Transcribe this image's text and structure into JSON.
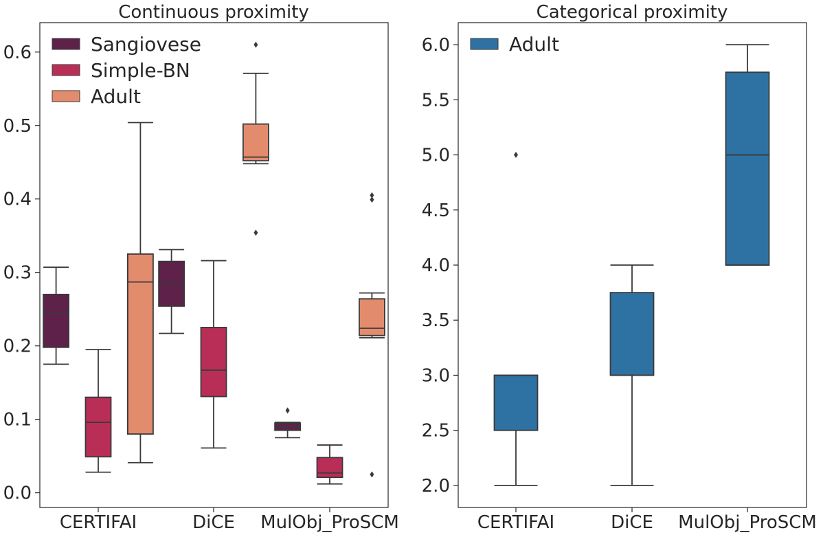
{
  "chart_data": [
    {
      "type": "box",
      "title": "Continuous proximity",
      "xlabel": "",
      "ylabel": "",
      "categories": [
        "CERTIFAI",
        "DiCE",
        "MulObj_ProSCM"
      ],
      "ylim": [
        -0.02,
        0.64
      ],
      "yticks": [
        "0.0",
        "0.1",
        "0.2",
        "0.3",
        "0.4",
        "0.5",
        "0.6"
      ],
      "legend": {
        "position": "top-left",
        "entries": [
          "Sangiovese",
          "Simple-BN",
          "Adult"
        ]
      },
      "series": [
        {
          "name": "Sangiovese",
          "color": "#5e2149",
          "boxes": [
            {
              "whisker_low": 0.175,
              "q1": 0.198,
              "median": 0.245,
              "q3": 0.27,
              "whisker_high": 0.307,
              "outliers": []
            },
            {
              "whisker_low": 0.217,
              "q1": 0.254,
              "median": 0.285,
              "q3": 0.315,
              "whisker_high": 0.331,
              "outliers": []
            },
            {
              "whisker_low": 0.075,
              "q1": 0.085,
              "median": 0.09,
              "q3": 0.095,
              "whisker_high": 0.096,
              "outliers": [
                0.112
              ]
            }
          ]
        },
        {
          "name": "Simple-BN",
          "color": "#b92e57",
          "boxes": [
            {
              "whisker_low": 0.028,
              "q1": 0.049,
              "median": 0.096,
              "q3": 0.13,
              "whisker_high": 0.195,
              "outliers": []
            },
            {
              "whisker_low": 0.061,
              "q1": 0.131,
              "median": 0.167,
              "q3": 0.225,
              "whisker_high": 0.316,
              "outliers": []
            },
            {
              "whisker_low": 0.012,
              "q1": 0.021,
              "median": 0.027,
              "q3": 0.048,
              "whisker_high": 0.065,
              "outliers": []
            }
          ]
        },
        {
          "name": "Adult",
          "color": "#e38c6d",
          "boxes": [
            {
              "whisker_low": 0.041,
              "q1": 0.08,
              "median": 0.287,
              "q3": 0.325,
              "whisker_high": 0.504,
              "outliers": []
            },
            {
              "whisker_low": 0.448,
              "q1": 0.452,
              "median": 0.457,
              "q3": 0.502,
              "whisker_high": 0.571,
              "outliers": [
                0.354,
                0.61
              ]
            },
            {
              "whisker_low": 0.211,
              "q1": 0.214,
              "median": 0.224,
              "q3": 0.264,
              "whisker_high": 0.272,
              "outliers": [
                0.025,
                0.399,
                0.405
              ]
            }
          ]
        }
      ]
    },
    {
      "type": "box",
      "title": "Categorical proximity",
      "xlabel": "",
      "ylabel": "",
      "categories": [
        "CERTIFAI",
        "DiCE",
        "MulObj_ProSCM"
      ],
      "ylim": [
        1.8,
        6.2
      ],
      "yticks": [
        "2.0",
        "2.5",
        "3.0",
        "3.5",
        "4.0",
        "4.5",
        "5.0",
        "5.5",
        "6.0"
      ],
      "legend": {
        "position": "top-left",
        "entries": [
          "Adult"
        ]
      },
      "series": [
        {
          "name": "Adult",
          "color": "#2e72a3",
          "boxes": [
            {
              "whisker_low": 2.0,
              "q1": 2.5,
              "median": 3.0,
              "q3": 3.0,
              "whisker_high": 3.0,
              "outliers": [
                5.0
              ]
            },
            {
              "whisker_low": 2.0,
              "q1": 3.0,
              "median": 3.0,
              "q3": 3.75,
              "whisker_high": 4.0,
              "outliers": []
            },
            {
              "whisker_low": 4.0,
              "q1": 4.0,
              "median": 5.0,
              "q3": 5.75,
              "whisker_high": 6.0,
              "outliers": []
            }
          ]
        }
      ]
    }
  ]
}
